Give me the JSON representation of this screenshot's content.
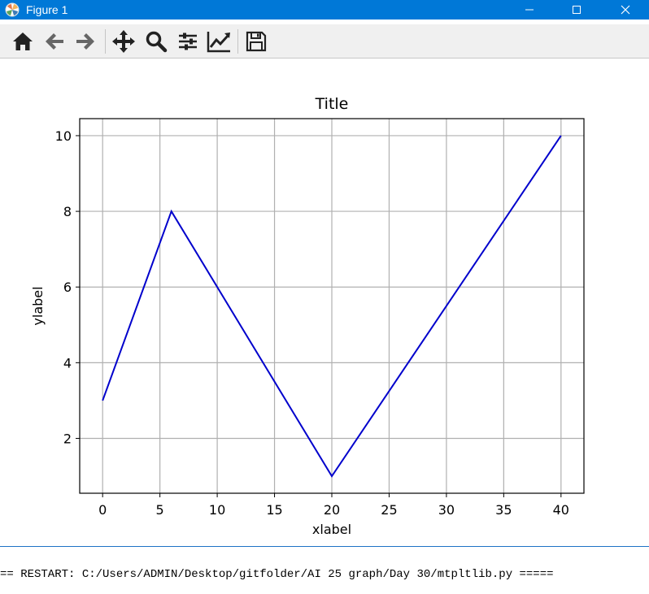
{
  "window": {
    "title": "Figure 1"
  },
  "toolbar": {
    "buttons": [
      {
        "name": "home",
        "icon": "home-icon"
      },
      {
        "name": "back",
        "icon": "arrow-left-icon"
      },
      {
        "name": "forward",
        "icon": "arrow-right-icon"
      },
      {
        "name": "pan",
        "icon": "move-icon"
      },
      {
        "name": "zoom",
        "icon": "magnifier-icon"
      },
      {
        "name": "configure-subplots",
        "icon": "sliders-icon"
      },
      {
        "name": "edit-axis",
        "icon": "line-chart-icon"
      },
      {
        "name": "save",
        "icon": "floppy-disk-icon"
      }
    ]
  },
  "chart_data": {
    "type": "line",
    "title": "Title",
    "xlabel": "xlabel",
    "ylabel": "ylabel",
    "x": [
      0,
      6,
      20,
      40
    ],
    "y": [
      3,
      8,
      1,
      10
    ],
    "xlim": [
      -2,
      42
    ],
    "ylim": [
      0.55,
      10.45
    ],
    "xticks": [
      0,
      5,
      10,
      15,
      20,
      25,
      30,
      35,
      40
    ],
    "yticks": [
      2,
      4,
      6,
      8,
      10
    ],
    "grid": true,
    "line_color": "#0000cc"
  },
  "console": {
    "restart_line": "== RESTART: C:/Users/ADMIN/Desktop/gitfolder/AI 25 graph/Day 30/mtpltlib.py ====="
  },
  "colors": {
    "titlebar": "#0078d7",
    "grid": "#b0b0b0"
  }
}
